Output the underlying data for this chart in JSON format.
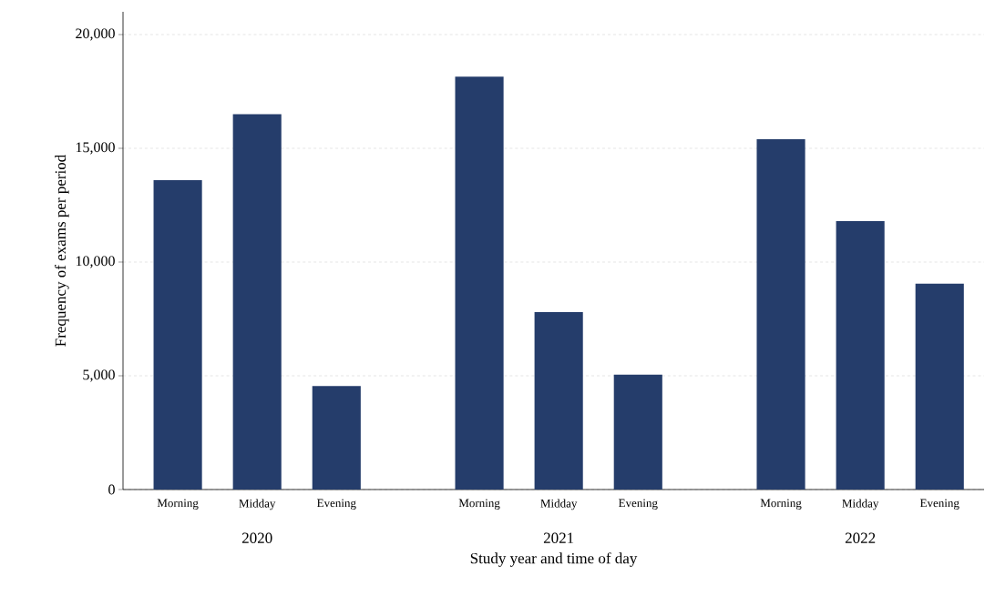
{
  "chart_data": {
    "type": "bar",
    "xlabel": "Study year and time of day",
    "ylabel": "Frequency of exams per period",
    "categories": [
      "Morning",
      "Midday",
      "Evening",
      "Morning",
      "Midday",
      "Evening",
      "Morning",
      "Midday",
      "Evening"
    ],
    "values": [
      13600,
      16500,
      4550,
      18150,
      7800,
      5050,
      15400,
      11800,
      9050
    ],
    "color": "#253d6b",
    "annotations": [
      "2020",
      "2021",
      "2022"
    ],
    "ylim": [
      0,
      21000
    ],
    "yticks": [
      0,
      {
        "value": 5000,
        "label": "5,000"
      },
      {
        "value": 10000,
        "label": "10,000"
      },
      {
        "value": 15000,
        "label": "15,000"
      },
      {
        "value": 20000,
        "label": "20,000"
      }
    ],
    "grid": "y"
  }
}
